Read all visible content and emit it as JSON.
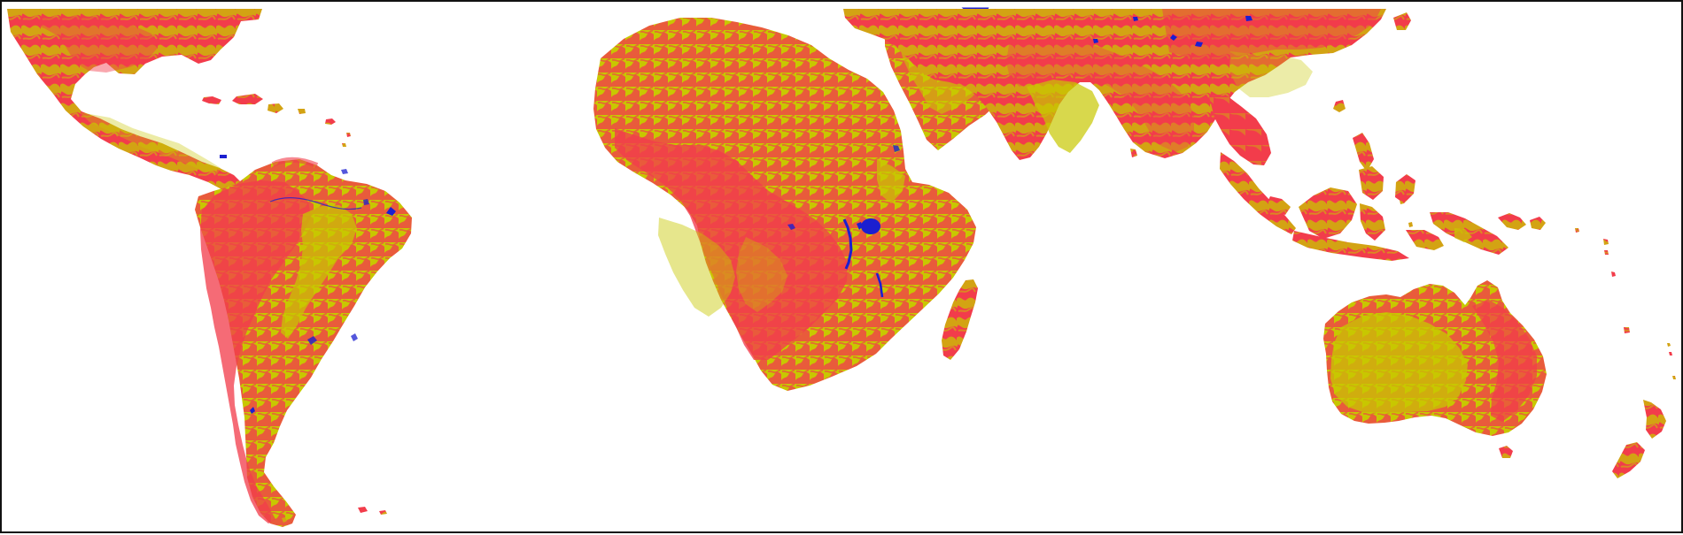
{
  "map": {
    "projection": "equirectangular",
    "extent": "tropics-and-subtropics",
    "border": true,
    "colors": {
      "background": "#ffffff",
      "frame": "#111111",
      "class_red": "#f23c4b",
      "class_yellow": "#c8c700",
      "water": "#1b1fd0"
    },
    "legend_visible": false,
    "labels_visible": false
  }
}
